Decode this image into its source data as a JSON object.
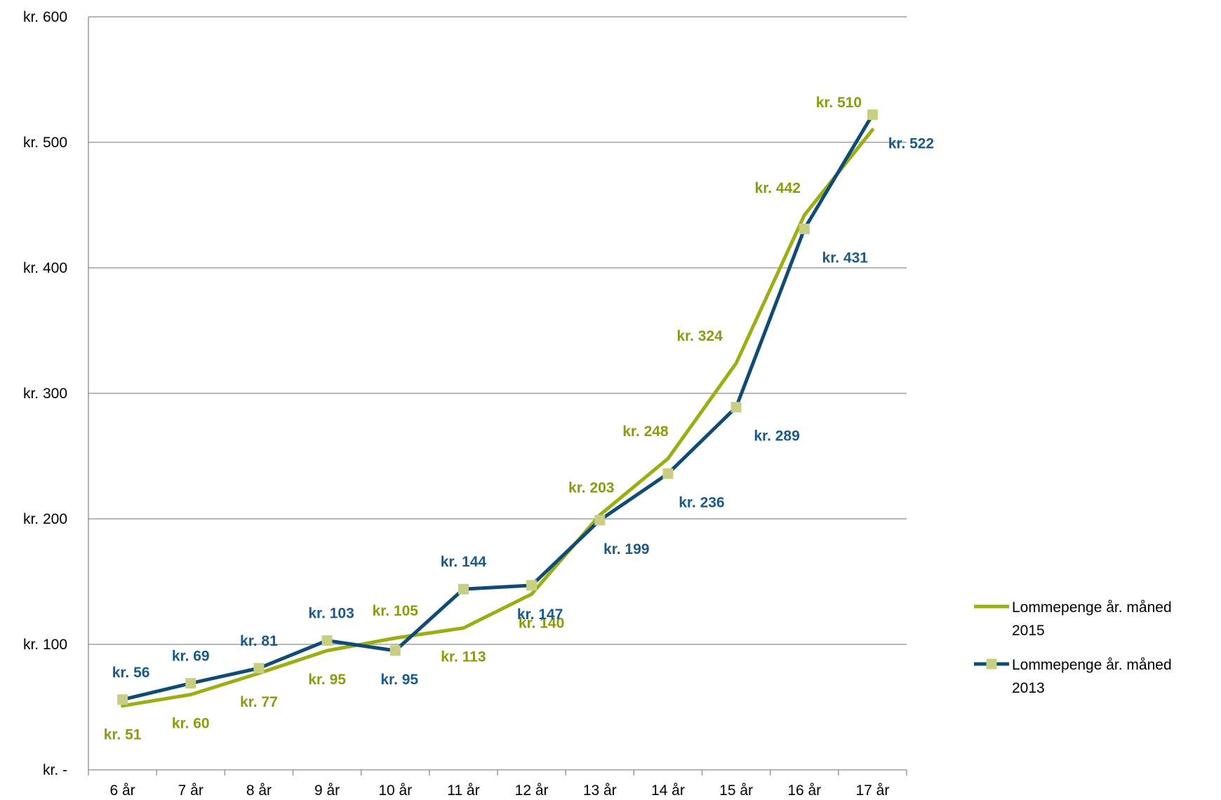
{
  "chart_data": {
    "type": "line",
    "title": "",
    "xlabel": "",
    "ylabel": "",
    "categories": [
      "6 år",
      "7 år",
      "8 år",
      "9 år",
      "10 år",
      "11 år",
      "12 år",
      "13 år",
      "14 år",
      "15 år",
      "16 år",
      "17 år"
    ],
    "ylim": [
      0,
      600
    ],
    "y_ticks": [
      {
        "value": 0,
        "label": "kr. -"
      },
      {
        "value": 100,
        "label": "kr. 100"
      },
      {
        "value": 200,
        "label": "kr. 200"
      },
      {
        "value": 300,
        "label": "kr. 300"
      },
      {
        "value": 400,
        "label": "kr. 400"
      },
      {
        "value": 500,
        "label": "kr. 500"
      },
      {
        "value": 600,
        "label": "kr. 600"
      }
    ],
    "grid": true,
    "legend_position": "right",
    "series": [
      {
        "name": "Lommepenge år. måned 2015",
        "legend_lines": [
          "Lommepenge år. måned",
          "2015"
        ],
        "color": "#9BAE12",
        "label_color": "#8C9A0E",
        "marker": "none",
        "values": [
          51,
          60,
          77,
          95,
          105,
          113,
          140,
          203,
          248,
          324,
          442,
          510
        ],
        "labels": [
          "kr. 51",
          "kr. 60",
          "kr. 77",
          "kr. 95",
          "kr. 105",
          "kr. 113",
          "kr. 140",
          "kr. 203",
          "kr. 248",
          "kr. 324",
          "kr. 442",
          "kr. 510"
        ]
      },
      {
        "name": "Lommepenge år. måned 2013",
        "legend_lines": [
          "Lommepenge år. måned",
          "2013"
        ],
        "color": "#0F4C75",
        "label_color": "#1A5A8A",
        "marker": "square",
        "marker_color": "#C8CE82",
        "values": [
          56,
          69,
          81,
          103,
          95,
          144,
          147,
          199,
          236,
          289,
          431,
          522
        ],
        "labels": [
          "kr. 56",
          "kr. 69",
          "kr. 81",
          "kr. 103",
          "kr. 95",
          "kr. 144",
          "kr. 147",
          "kr. 199",
          "kr. 236",
          "kr. 289",
          "kr. 431",
          "kr. 522"
        ]
      }
    ]
  }
}
